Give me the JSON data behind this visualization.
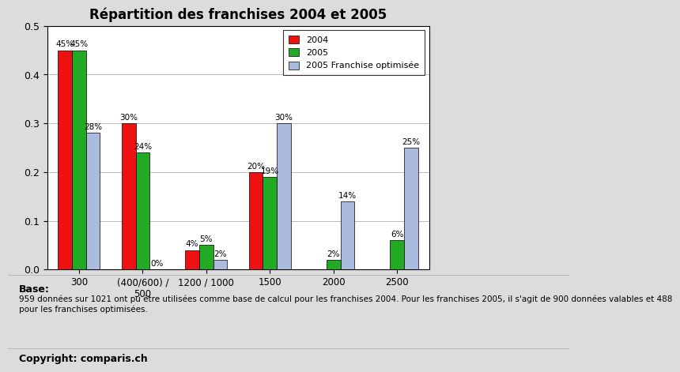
{
  "title": "Répartition des franchises 2004 et 2005",
  "categories": [
    "300",
    "(400/600) /\n500",
    "1200 / 1000",
    "1500",
    "2000",
    "2500"
  ],
  "series": {
    "2004": [
      0.45,
      0.3,
      0.04,
      0.2,
      0.0,
      0.0
    ],
    "2005": [
      0.45,
      0.24,
      0.05,
      0.19,
      0.02,
      0.06
    ],
    "2005 Franchise optimisée": [
      0.28,
      0.0,
      0.02,
      0.3,
      0.14,
      0.25
    ]
  },
  "labels": {
    "2004": [
      "45%",
      "30%",
      "4%",
      "20%",
      "",
      ""
    ],
    "2005": [
      "45%",
      "24%",
      "5%",
      "19%",
      "2%",
      "6%"
    ],
    "2005 Franchise optimisée": [
      "28%",
      "0%",
      "2%",
      "30%",
      "14%",
      "25%"
    ]
  },
  "colors": {
    "2004": "#ee1111",
    "2005": "#22aa22",
    "2005 Franchise optimisée": "#aabbdd"
  },
  "ylim": [
    0,
    0.5
  ],
  "yticks": [
    0,
    0.1,
    0.2,
    0.3,
    0.4,
    0.5
  ],
  "legend_order": [
    "2004",
    "2005",
    "2005 Franchise optimisée"
  ],
  "base_label": "Base:",
  "base_text": "959 données sur 1021 ont pu être utilisées comme base de calcul pour les franchises 2004. Pour les franchises 2005, il s'agit de 900 données valables et 488\npour les franchises optimisées.",
  "copyright": "Copyright: comparis.ch",
  "chart_bg": "#ffffff",
  "outer_bg": "#dcdcdc",
  "bar_width": 0.22,
  "label_fontsize": 7.5,
  "title_fontsize": 12
}
